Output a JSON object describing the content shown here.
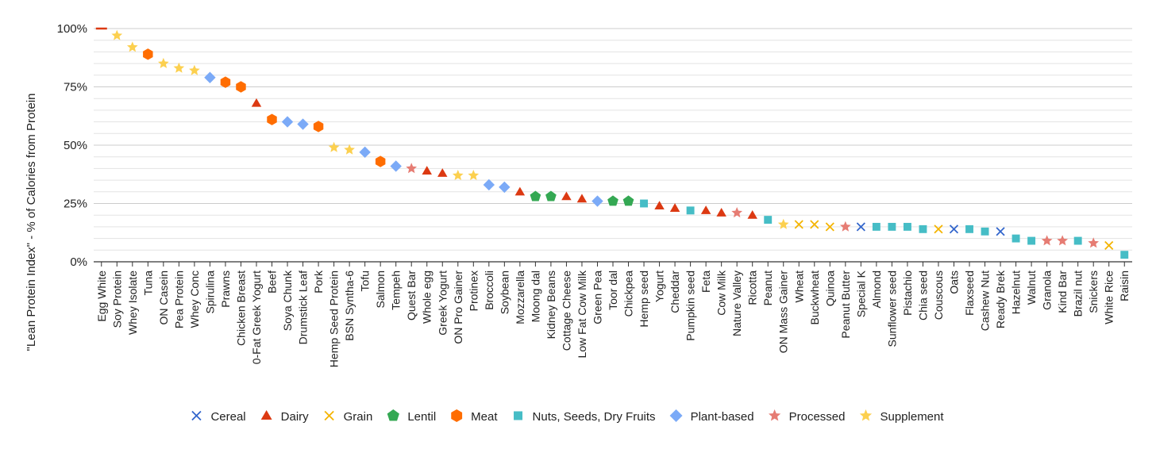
{
  "chart_data": {
    "type": "scatter",
    "title": "",
    "xlabel": "",
    "ylabel": "\"Lean Protein Index\" - % of Calories from Protein",
    "ylim": [
      0,
      100
    ],
    "yticks": [
      "0%",
      "25%",
      "50%",
      "75%",
      "100%"
    ],
    "grid": true,
    "legend_position": "bottom",
    "series": [
      {
        "name": "Cereal",
        "marker": "x",
        "color": "#3366cc"
      },
      {
        "name": "Dairy",
        "marker": "triangle",
        "color": "#dc3912"
      },
      {
        "name": "Grain",
        "marker": "x",
        "color": "#f4b400"
      },
      {
        "name": "Lentil",
        "marker": "pentagon",
        "color": "#34a853"
      },
      {
        "name": "Meat",
        "marker": "hexagon",
        "color": "#ff6d01"
      },
      {
        "name": "Nuts, Seeds, Dry Fruits",
        "marker": "square",
        "color": "#46bdc6"
      },
      {
        "name": "Plant-based",
        "marker": "diamond",
        "color": "#7baaf7"
      },
      {
        "name": "Processed",
        "marker": "star",
        "color": "#e67c73"
      },
      {
        "name": "Supplement",
        "marker": "star",
        "color": "#fcd04f"
      }
    ],
    "points": [
      {
        "label": "Egg White",
        "group": "Dairy",
        "y": 100
      },
      {
        "label": "Soy Protein",
        "group": "Supplement",
        "y": 97
      },
      {
        "label": "Whey Isolate",
        "group": "Supplement",
        "y": 92
      },
      {
        "label": "Tuna",
        "group": "Meat",
        "y": 89
      },
      {
        "label": "ON Casein",
        "group": "Supplement",
        "y": 85
      },
      {
        "label": "Pea Protein",
        "group": "Supplement",
        "y": 83
      },
      {
        "label": "Whey Conc",
        "group": "Supplement",
        "y": 82
      },
      {
        "label": "Spirulina",
        "group": "Plant-based",
        "y": 79
      },
      {
        "label": "Prawns",
        "group": "Meat",
        "y": 77
      },
      {
        "label": "Chicken Breast",
        "group": "Meat",
        "y": 75
      },
      {
        "label": "0-Fat Greek Yogurt",
        "group": "Dairy",
        "y": 68
      },
      {
        "label": "Beef",
        "group": "Meat",
        "y": 61
      },
      {
        "label": "Soya Chunk",
        "group": "Plant-based",
        "y": 60
      },
      {
        "label": "Drumstick Leaf",
        "group": "Plant-based",
        "y": 59
      },
      {
        "label": "Pork",
        "group": "Meat",
        "y": 58
      },
      {
        "label": "Hemp Seed Protein",
        "group": "Supplement",
        "y": 49
      },
      {
        "label": "BSN Syntha-6",
        "group": "Supplement",
        "y": 48
      },
      {
        "label": "Tofu",
        "group": "Plant-based",
        "y": 47
      },
      {
        "label": "Salmon",
        "group": "Meat",
        "y": 43
      },
      {
        "label": "Tempeh",
        "group": "Plant-based",
        "y": 41
      },
      {
        "label": "Quest Bar",
        "group": "Processed",
        "y": 40
      },
      {
        "label": "Whole egg",
        "group": "Dairy",
        "y": 39
      },
      {
        "label": "Greek Yogurt",
        "group": "Dairy",
        "y": 38
      },
      {
        "label": "ON Pro Gainer",
        "group": "Supplement",
        "y": 37
      },
      {
        "label": "Protinex",
        "group": "Supplement",
        "y": 37
      },
      {
        "label": "Broccoli",
        "group": "Plant-based",
        "y": 33
      },
      {
        "label": "Soybean",
        "group": "Plant-based",
        "y": 32
      },
      {
        "label": "Mozzarella",
        "group": "Dairy",
        "y": 30
      },
      {
        "label": "Moong dal",
        "group": "Lentil",
        "y": 28
      },
      {
        "label": "Kidney Beans",
        "group": "Lentil",
        "y": 28
      },
      {
        "label": "Cottage Cheese",
        "group": "Dairy",
        "y": 28
      },
      {
        "label": "Low Fat Cow Milk",
        "group": "Dairy",
        "y": 27
      },
      {
        "label": "Green Pea",
        "group": "Plant-based",
        "y": 26
      },
      {
        "label": "Toor dal",
        "group": "Lentil",
        "y": 26
      },
      {
        "label": "Chickpea",
        "group": "Lentil",
        "y": 26
      },
      {
        "label": "Hemp seed",
        "group": "Nuts, Seeds, Dry Fruits",
        "y": 25
      },
      {
        "label": "Yogurt",
        "group": "Dairy",
        "y": 24
      },
      {
        "label": "Cheddar",
        "group": "Dairy",
        "y": 23
      },
      {
        "label": "Pumpkin seed",
        "group": "Nuts, Seeds, Dry Fruits",
        "y": 22
      },
      {
        "label": "Feta",
        "group": "Dairy",
        "y": 22
      },
      {
        "label": "Cow Milk",
        "group": "Dairy",
        "y": 21
      },
      {
        "label": "Nature Valley",
        "group": "Processed",
        "y": 21
      },
      {
        "label": "Ricotta",
        "group": "Dairy",
        "y": 20
      },
      {
        "label": "Peanut",
        "group": "Nuts, Seeds, Dry Fruits",
        "y": 18
      },
      {
        "label": "ON Mass Gainer",
        "group": "Supplement",
        "y": 16
      },
      {
        "label": "Wheat",
        "group": "Grain",
        "y": 16
      },
      {
        "label": "Buckwheat",
        "group": "Grain",
        "y": 16
      },
      {
        "label": "Quinoa",
        "group": "Grain",
        "y": 15
      },
      {
        "label": "Peanut Butter",
        "group": "Processed",
        "y": 15
      },
      {
        "label": "Special K",
        "group": "Cereal",
        "y": 15
      },
      {
        "label": "Almond",
        "group": "Nuts, Seeds, Dry Fruits",
        "y": 15
      },
      {
        "label": "Sunflower seed",
        "group": "Nuts, Seeds, Dry Fruits",
        "y": 15
      },
      {
        "label": "Pistachio",
        "group": "Nuts, Seeds, Dry Fruits",
        "y": 15
      },
      {
        "label": "Chia seed",
        "group": "Nuts, Seeds, Dry Fruits",
        "y": 14
      },
      {
        "label": "Couscous",
        "group": "Grain",
        "y": 14
      },
      {
        "label": "Oats",
        "group": "Cereal",
        "y": 14
      },
      {
        "label": "Flaxseed",
        "group": "Nuts, Seeds, Dry Fruits",
        "y": 14
      },
      {
        "label": "Cashew Nut",
        "group": "Nuts, Seeds, Dry Fruits",
        "y": 13
      },
      {
        "label": "Ready Brek",
        "group": "Cereal",
        "y": 13
      },
      {
        "label": "Hazelnut",
        "group": "Nuts, Seeds, Dry Fruits",
        "y": 10
      },
      {
        "label": "Walnut",
        "group": "Nuts, Seeds, Dry Fruits",
        "y": 9
      },
      {
        "label": "Granola",
        "group": "Processed",
        "y": 9
      },
      {
        "label": "Kind Bar",
        "group": "Processed",
        "y": 9
      },
      {
        "label": "Brazil nut",
        "group": "Nuts, Seeds, Dry Fruits",
        "y": 9
      },
      {
        "label": "Snickers",
        "group": "Processed",
        "y": 8
      },
      {
        "label": "White Rice",
        "group": "Grain",
        "y": 7
      },
      {
        "label": "Raisin",
        "group": "Nuts, Seeds, Dry Fruits",
        "y": 3
      }
    ]
  }
}
